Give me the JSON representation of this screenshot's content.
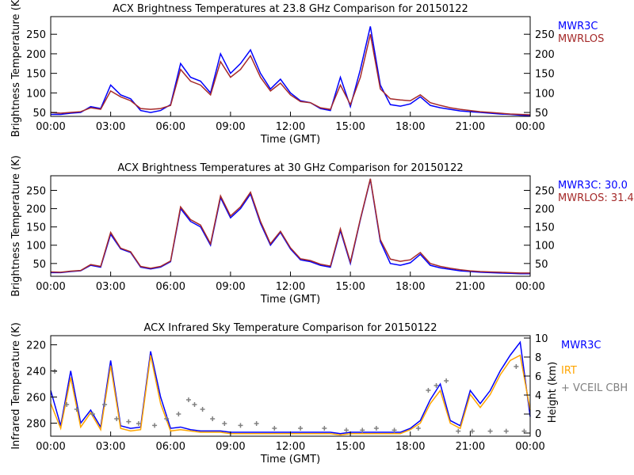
{
  "chart_data": [
    {
      "type": "line",
      "title": "ACX  Brightness Temperatures at 23.8 GHz Comparison for 20150122",
      "xlabel": "Time (GMT)",
      "ylabel": "Brightness Temperature (K)",
      "ylim": [
        40,
        295
      ],
      "yticks": [
        50,
        100,
        150,
        200,
        250
      ],
      "xticks": [
        "00:00",
        "03:00",
        "06:00",
        "09:00",
        "12:00",
        "15:00",
        "18:00",
        "21:00",
        "00:00"
      ],
      "xlim": [
        0,
        24
      ],
      "x": [
        0,
        0.5,
        1,
        1.5,
        2,
        2.5,
        3,
        3.5,
        4,
        4.5,
        5,
        5.5,
        6,
        6.5,
        7,
        7.5,
        8,
        8.5,
        9,
        9.5,
        10,
        10.5,
        11,
        11.5,
        12,
        12.5,
        13,
        13.5,
        14,
        14.5,
        15,
        15.5,
        16,
        16.5,
        17,
        17.5,
        18,
        18.5,
        19,
        19.5,
        20,
        20.5,
        21,
        21.5,
        22,
        22.5,
        23,
        23.5,
        24
      ],
      "series": [
        {
          "name": "MWR3C",
          "color": "#0000ff",
          "values": [
            45,
            45,
            48,
            50,
            65,
            60,
            120,
            95,
            85,
            55,
            50,
            55,
            70,
            175,
            140,
            130,
            100,
            200,
            150,
            175,
            210,
            150,
            110,
            135,
            100,
            80,
            75,
            60,
            55,
            140,
            65,
            160,
            270,
            120,
            70,
            66,
            72,
            90,
            68,
            62,
            58,
            54,
            52,
            50,
            48,
            46,
            45,
            43,
            42
          ]
        },
        {
          "name": "MWRLOS",
          "color": "#a52a2a",
          "values": [
            50,
            48,
            50,
            52,
            62,
            58,
            105,
            90,
            80,
            60,
            58,
            60,
            68,
            160,
            130,
            120,
            95,
            180,
            140,
            160,
            195,
            140,
            105,
            125,
            95,
            78,
            75,
            62,
            58,
            120,
            70,
            140,
            250,
            110,
            85,
            82,
            80,
            95,
            75,
            68,
            62,
            58,
            55,
            52,
            50,
            48,
            46,
            45,
            44
          ]
        }
      ]
    },
    {
      "type": "line",
      "title": "ACX  Brightness Temperatures at 30 GHz Comparison for 20150122",
      "xlabel": "Time (GMT)",
      "ylabel": "Brightness Temperature (K)",
      "ylim": [
        15,
        290
      ],
      "yticks": [
        50,
        100,
        150,
        200,
        250
      ],
      "xticks": [
        "00:00",
        "03:00",
        "06:00",
        "09:00",
        "12:00",
        "15:00",
        "18:00",
        "21:00",
        "00:00"
      ],
      "xlim": [
        0,
        24
      ],
      "x": [
        0,
        0.5,
        1,
        1.5,
        2,
        2.5,
        3,
        3.5,
        4,
        4.5,
        5,
        5.5,
        6,
        6.5,
        7,
        7.5,
        8,
        8.5,
        9,
        9.5,
        10,
        10.5,
        11,
        11.5,
        12,
        12.5,
        13,
        13.5,
        14,
        14.5,
        15,
        15.5,
        16,
        16.5,
        17,
        17.5,
        18,
        18.5,
        19,
        19.5,
        20,
        20.5,
        21,
        21.5,
        22,
        22.5,
        23,
        23.5,
        24
      ],
      "series": [
        {
          "name": "MWR3C: 30.0",
          "color": "#0000ff",
          "values": [
            25,
            25,
            28,
            30,
            45,
            40,
            130,
            90,
            80,
            40,
            35,
            40,
            55,
            200,
            165,
            150,
            100,
            230,
            175,
            200,
            240,
            160,
            100,
            135,
            90,
            60,
            55,
            45,
            40,
            140,
            50,
            170,
            280,
            110,
            50,
            45,
            52,
            75,
            45,
            38,
            34,
            30,
            28,
            26,
            25,
            24,
            23,
            22,
            22
          ]
        },
        {
          "name": "MWRLOS: 31.4",
          "color": "#a52a2a",
          "values": [
            27,
            26,
            29,
            31,
            47,
            42,
            135,
            92,
            82,
            42,
            37,
            42,
            57,
            205,
            170,
            155,
            104,
            235,
            180,
            205,
            245,
            165,
            104,
            138,
            93,
            63,
            58,
            48,
            43,
            145,
            54,
            172,
            282,
            115,
            62,
            56,
            60,
            80,
            50,
            42,
            37,
            33,
            30,
            28,
            27,
            26,
            25,
            24,
            24
          ]
        }
      ]
    },
    {
      "type": "line",
      "title": "ACX  Infrared Sky Temperature Comparison for 20150122",
      "xlabel": "Time (GMT)",
      "ylabel": "Infrared Temperature (K)",
      "ylabel_right": "Height (km)",
      "ylim": [
        290,
        213
      ],
      "ylim_right": [
        0,
        10
      ],
      "yticks": [
        220,
        240,
        260,
        280
      ],
      "yticks_right": [
        0,
        2,
        4,
        6,
        8,
        10
      ],
      "xticks": [
        "00:00",
        "03:00",
        "06:00",
        "09:00",
        "12:00",
        "15:00",
        "18:00",
        "21:00",
        "00:00"
      ],
      "xlim": [
        0,
        24
      ],
      "x": [
        0,
        0.5,
        1,
        1.5,
        2,
        2.5,
        3,
        3.5,
        4,
        4.5,
        5,
        5.5,
        6,
        6.5,
        7,
        7.5,
        8,
        8.5,
        9,
        9.5,
        10,
        10.5,
        11,
        11.5,
        12,
        12.5,
        13,
        13.5,
        14,
        14.5,
        15,
        15.5,
        16,
        16.5,
        17,
        17.5,
        18,
        18.5,
        19,
        19.5,
        20,
        20.5,
        21,
        21.5,
        22,
        22.5,
        23,
        23.5,
        24
      ],
      "series": [
        {
          "name": "MWR3C",
          "color": "#0000ff",
          "values": [
            255,
            282,
            240,
            280,
            270,
            283,
            232,
            282,
            284,
            283,
            225,
            260,
            284,
            283,
            285,
            286,
            286,
            286,
            287,
            287,
            287,
            287,
            287,
            287,
            287,
            287,
            287,
            287,
            287,
            288,
            287,
            287,
            287,
            287,
            287,
            287,
            284,
            278,
            262,
            250,
            278,
            282,
            255,
            265,
            255,
            240,
            228,
            218,
            275
          ]
        },
        {
          "name": "IRT",
          "color": "#ffa500",
          "values": [
            265,
            284,
            245,
            283,
            272,
            285,
            236,
            284,
            286,
            285,
            228,
            265,
            286,
            285,
            286,
            287,
            287,
            287,
            288,
            288,
            288,
            288,
            288,
            288,
            288,
            288,
            288,
            288,
            288,
            289,
            288,
            288,
            288,
            288,
            288,
            288,
            285,
            280,
            265,
            255,
            280,
            284,
            258,
            268,
            258,
            243,
            232,
            228,
            270
          ]
        },
        {
          "name": "VCEIL CBH",
          "color": "#808080",
          "marker": "+",
          "x": [
            0.2,
            0.8,
            1.3,
            2.1,
            2.7,
            3.3,
            3.9,
            4.4,
            5.2,
            5.8,
            6.4,
            6.9,
            7.2,
            7.6,
            8.1,
            8.7,
            9.5,
            10.3,
            11.2,
            12.5,
            13.7,
            14.8,
            15.6,
            16.3,
            17.2,
            18.4,
            18.9,
            19.3,
            19.8,
            20.4,
            21.1,
            22.0,
            22.8,
            23.3,
            23.7
          ],
          "values": [
            6.5,
            3,
            2.5,
            2,
            3,
            1.5,
            1.2,
            1,
            0.8,
            1.5,
            2,
            3.5,
            3,
            2.5,
            1.5,
            1,
            0.8,
            1,
            0.5,
            0.5,
            0.5,
            0.3,
            0.3,
            0.5,
            0.3,
            0.5,
            4.5,
            5,
            5.5,
            0.2,
            0.2,
            0.2,
            0.2,
            7,
            0.2
          ]
        }
      ]
    }
  ]
}
